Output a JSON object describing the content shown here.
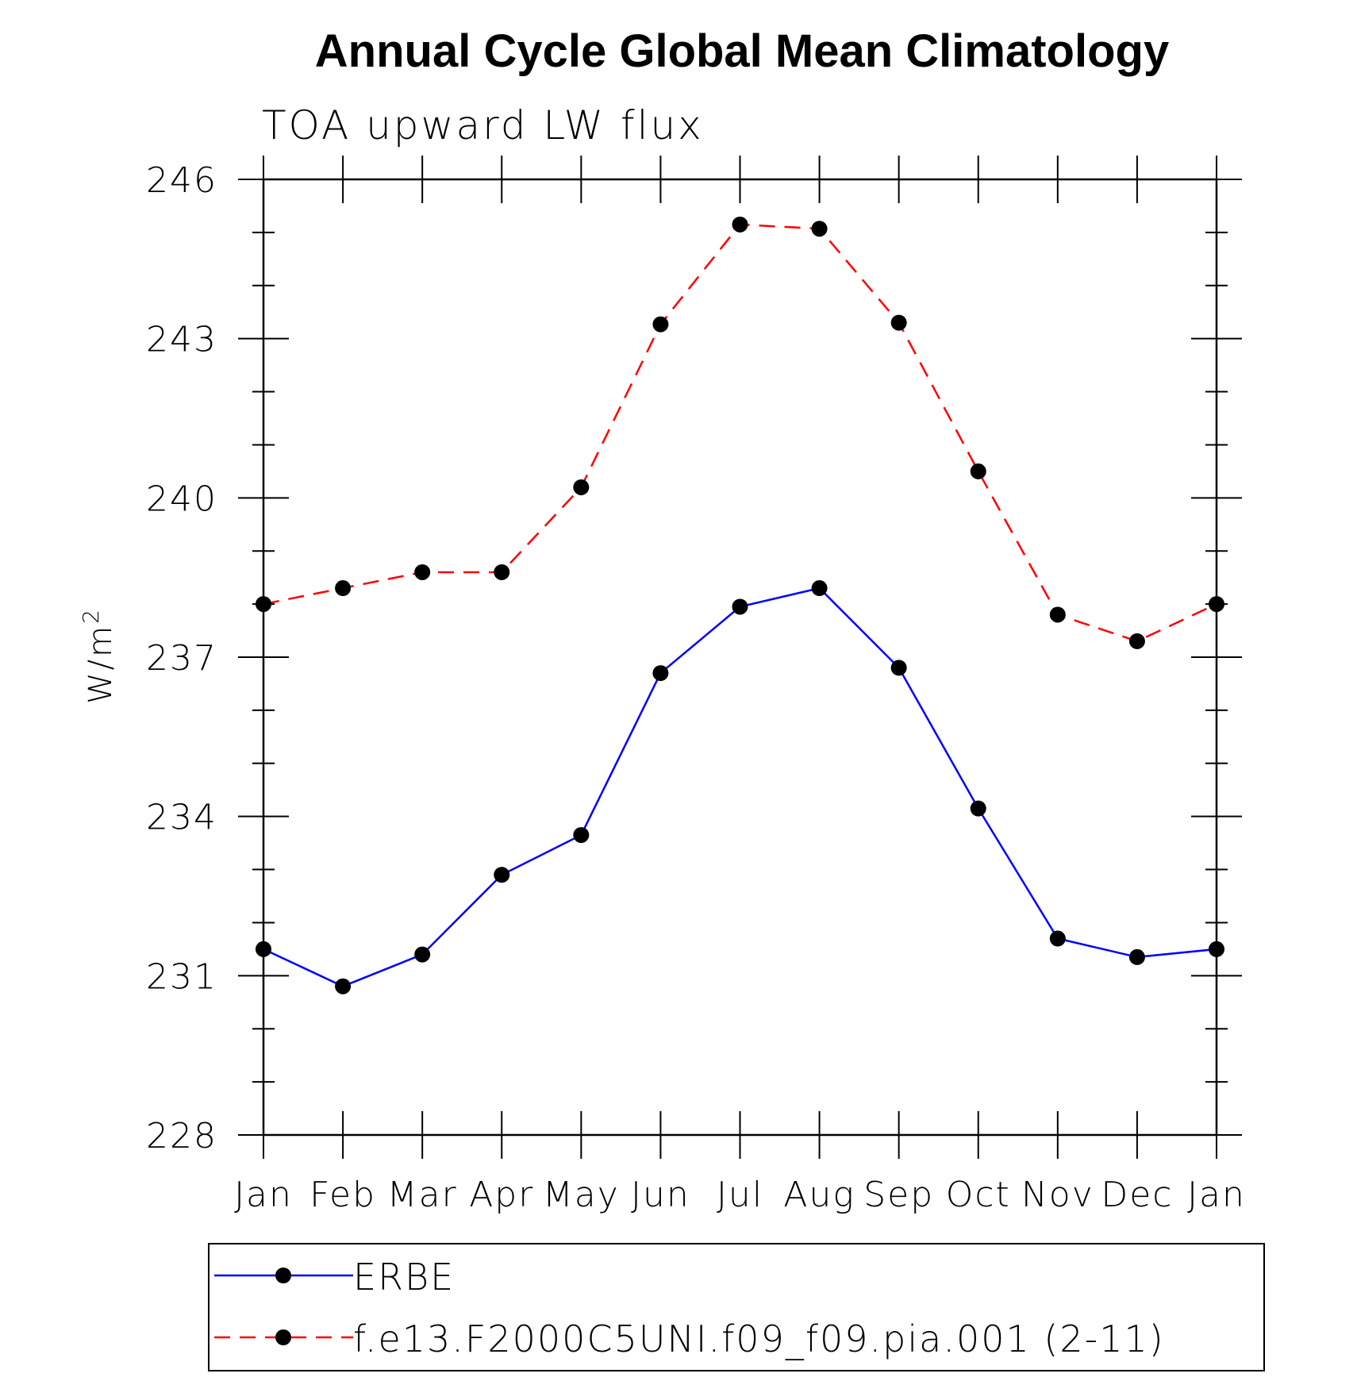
{
  "chart_data": {
    "type": "line",
    "title": "Annual Cycle Global Mean Climatology",
    "subtitle": "TOA upward LW flux",
    "ylabel": "W/m",
    "ylabel_superscript": "2",
    "xlabel": "",
    "categories": [
      "Jan",
      "Feb",
      "Mar",
      "Apr",
      "May",
      "Jun",
      "Jul",
      "Aug",
      "Sep",
      "Oct",
      "Nov",
      "Dec",
      "Jan"
    ],
    "ylim": [
      228,
      246
    ],
    "yticks": [
      "246",
      "243",
      "240",
      "237",
      "234",
      "231",
      "228"
    ],
    "grid": false,
    "legend_position": "bottom",
    "series": [
      {
        "name": "ERBE",
        "color": "#0000ff",
        "dash": "solid",
        "values": [
          231.5,
          230.8,
          231.4,
          232.9,
          233.65,
          236.7,
          237.95,
          238.3,
          236.8,
          234.15,
          231.7,
          231.35,
          231.5
        ]
      },
      {
        "name": "f.e13.F2000C5UNI.f09_f09.pia.001 (2-11)",
        "color": "#ff0000",
        "dash": "dashed",
        "values": [
          238.0,
          238.3,
          238.6,
          238.6,
          240.2,
          243.27,
          245.15,
          245.07,
          243.3,
          240.5,
          237.8,
          237.3,
          238.0
        ]
      }
    ]
  }
}
